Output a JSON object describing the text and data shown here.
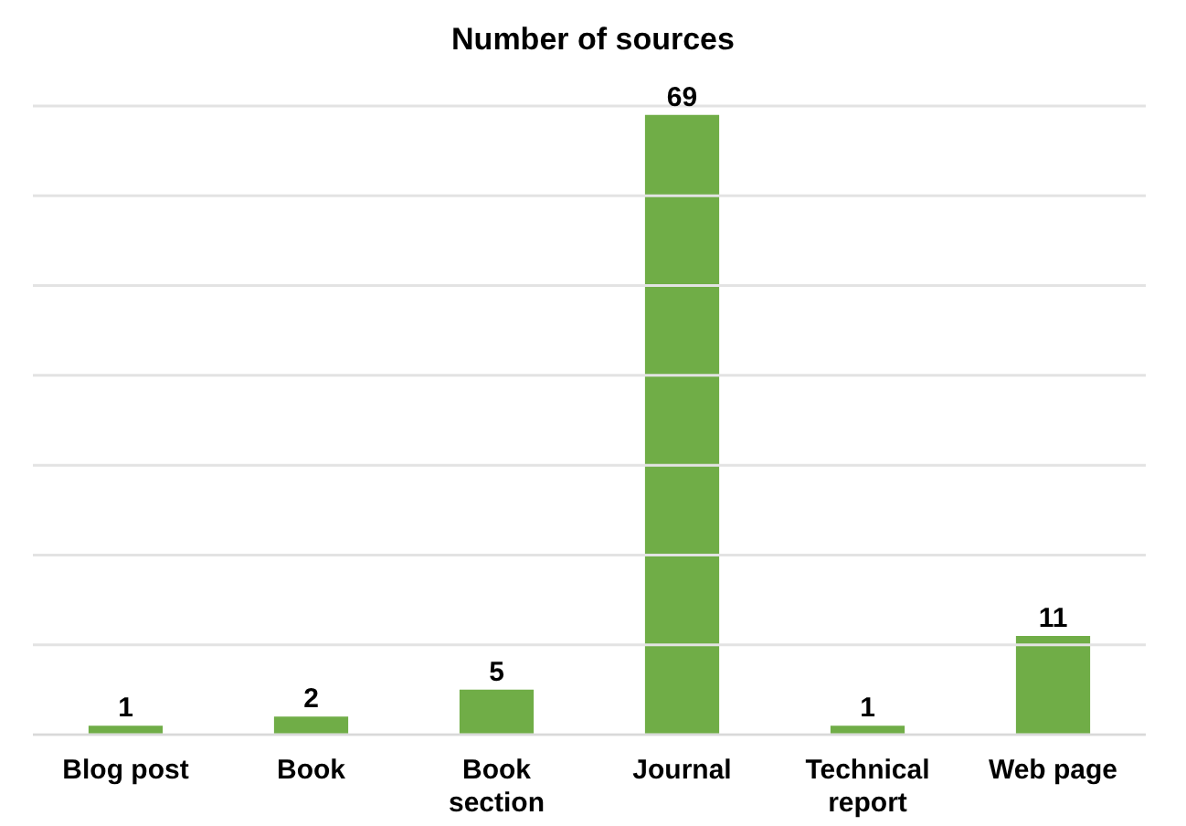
{
  "chart_data": {
    "type": "bar",
    "title": "Number of sources",
    "categories": [
      "Blog post",
      "Book",
      "Book section",
      "Journal",
      "Technical report",
      "Web page"
    ],
    "values": [
      1,
      2,
      5,
      69,
      1,
      11
    ],
    "color": "#70ad47",
    "ylim": [
      0,
      70
    ],
    "yticks": [
      {
        "value": 0,
        "label": null
      },
      {
        "value": 10,
        "label": null
      },
      {
        "value": 20,
        "label": null
      },
      {
        "value": 30,
        "label": null
      },
      {
        "value": 40,
        "label": null
      },
      {
        "value": 50,
        "label": null
      },
      {
        "value": 60,
        "label": null
      },
      {
        "value": 70,
        "label": null
      }
    ],
    "tick_labels": "x",
    "grid": "y",
    "data_labels": true,
    "legend": false
  }
}
